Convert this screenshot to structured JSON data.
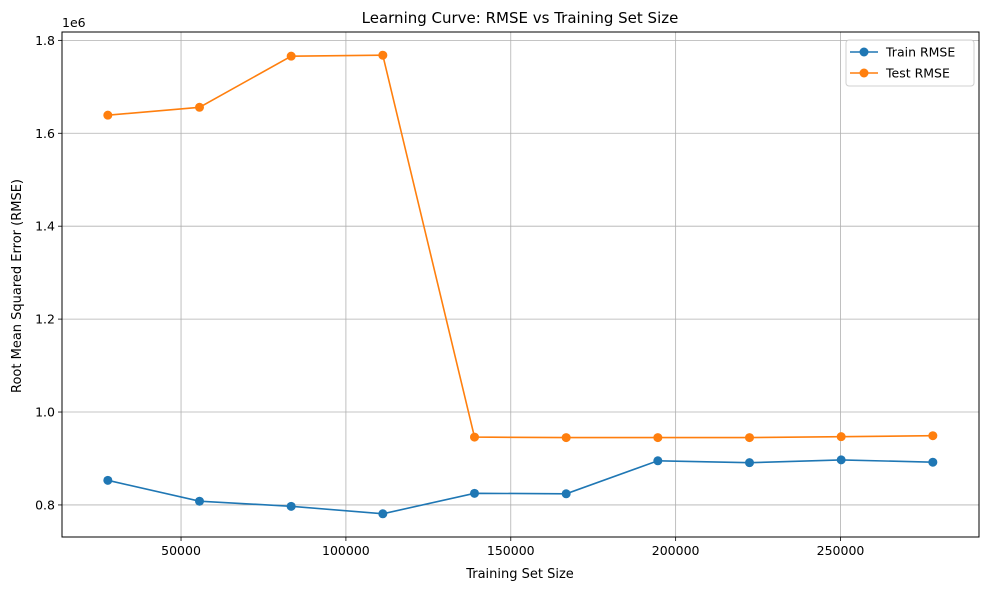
{
  "chart_data": {
    "type": "line",
    "title": "Learning Curve: RMSE vs Training Set Size",
    "xlabel": "Training Set Size",
    "ylabel": "Root Mean Squared Error (RMSE)",
    "y_offset_label": "1e6",
    "xlim": [
      13900,
      292000
    ],
    "ylim": [
      0.731,
      1.818
    ],
    "xticks": [
      50000,
      100000,
      150000,
      200000,
      250000
    ],
    "xtick_labels": [
      "50000",
      "100000",
      "150000",
      "200000",
      "250000"
    ],
    "yticks": [
      0.8,
      1.0,
      1.2,
      1.4,
      1.6,
      1.8
    ],
    "ytick_labels": [
      "0.8",
      "1.0",
      "1.2",
      "1.4",
      "1.6",
      "1.8"
    ],
    "grid": true,
    "legend_position": "top-right",
    "x": [
      27800,
      55600,
      83400,
      111200,
      139000,
      166800,
      194600,
      222400,
      250200,
      278000
    ],
    "series": [
      {
        "name": "Train RMSE",
        "color": "#1f77b4",
        "marker": "circle",
        "values": [
          0.853,
          0.808,
          0.797,
          0.781,
          0.825,
          0.824,
          0.895,
          0.891,
          0.897,
          0.892
        ]
      },
      {
        "name": "Test RMSE",
        "color": "#ff7f0e",
        "marker": "circle",
        "values": [
          1.639,
          1.656,
          1.766,
          1.768,
          0.946,
          0.945,
          0.945,
          0.945,
          0.947,
          0.949
        ]
      }
    ]
  }
}
